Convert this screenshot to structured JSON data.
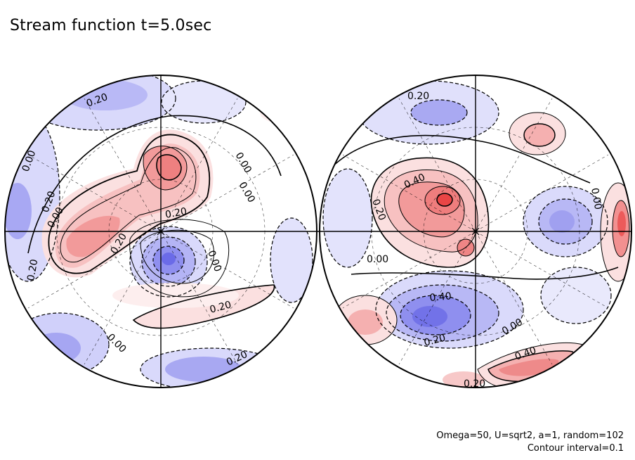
{
  "title": "Stream function t=5.0sec",
  "footer": {
    "params": "Omega=50, U=sqrt2, a=1, random=102",
    "interval": "Contour interval=0.1"
  },
  "colors": {
    "positive": "#ee3b3b",
    "negative": "#3d3de0",
    "outline": "#000000"
  },
  "hemispheres": [
    {
      "name": "left-hemisphere",
      "labels": [
        {
          "text": "0.20"
        },
        {
          "text": "0.00"
        },
        {
          "text": "0.20"
        },
        {
          "text": "0.00"
        },
        {
          "text": "0.00"
        },
        {
          "text": "0.00"
        },
        {
          "text": "0.20"
        },
        {
          "text": "0.20"
        },
        {
          "text": "0.00"
        },
        {
          "text": "0.20"
        },
        {
          "text": "0.20"
        },
        {
          "text": "0.00"
        },
        {
          "text": "0.20"
        }
      ]
    },
    {
      "name": "right-hemisphere",
      "labels": [
        {
          "text": "0.20"
        },
        {
          "text": "0.40"
        },
        {
          "text": "0.20"
        },
        {
          "text": "0.00"
        },
        {
          "text": "0.00"
        },
        {
          "text": "0.40"
        },
        {
          "text": "0.20"
        },
        {
          "text": "0.00"
        },
        {
          "text": "0.40"
        },
        {
          "text": "0.20"
        }
      ]
    }
  ]
}
